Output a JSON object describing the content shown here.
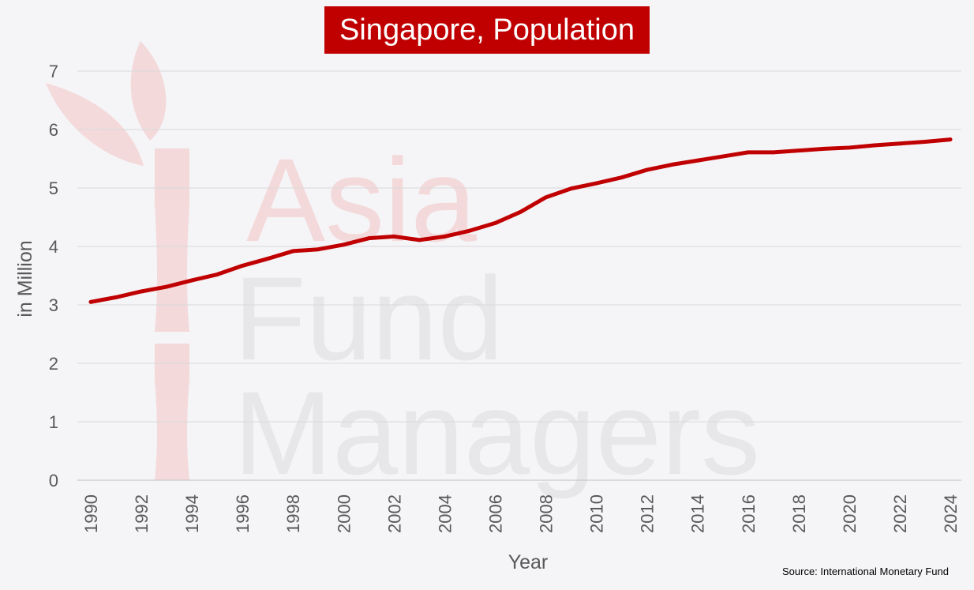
{
  "header": {
    "title": "Singapore, Population"
  },
  "watermark": {
    "line1": "Asia",
    "line2": "Fund",
    "line3": "Managers"
  },
  "footer": {
    "source": "Source: International Monetary Fund"
  },
  "colors": {
    "accent": "#c00000",
    "background": "#f5f4f7",
    "grid": "#d9d9d9",
    "text": "#595959"
  },
  "chart_data": {
    "type": "line",
    "title": "Singapore, Population",
    "xlabel": "Year",
    "ylabel": "in Million",
    "ylim": [
      0,
      7
    ],
    "yticks": [
      "0",
      "1",
      "2",
      "3",
      "4",
      "5",
      "6",
      "7"
    ],
    "xticks": [
      "1990",
      "1992",
      "1994",
      "1996",
      "1998",
      "2000",
      "2002",
      "2004",
      "2006",
      "2008",
      "2010",
      "2012",
      "2014",
      "2016",
      "2018",
      "2020",
      "2022",
      "2024"
    ],
    "grid": true,
    "x": [
      1990,
      1991,
      1992,
      1993,
      1994,
      1995,
      1996,
      1997,
      1998,
      1999,
      2000,
      2001,
      2002,
      2003,
      2004,
      2005,
      2006,
      2007,
      2008,
      2009,
      2010,
      2011,
      2012,
      2013,
      2014,
      2015,
      2016,
      2017,
      2018,
      2019,
      2020,
      2021,
      2022,
      2023,
      2024
    ],
    "series": [
      {
        "values": [
          3.05,
          3.13,
          3.23,
          3.31,
          3.42,
          3.52,
          3.67,
          3.79,
          3.92,
          3.95,
          4.03,
          4.14,
          4.17,
          4.11,
          4.17,
          4.27,
          4.4,
          4.59,
          4.84,
          4.99,
          5.08,
          5.18,
          5.31,
          5.4,
          5.47,
          5.54,
          5.61,
          5.61,
          5.64,
          5.67,
          5.69,
          5.73,
          5.76,
          5.79,
          5.83
        ]
      }
    ]
  }
}
